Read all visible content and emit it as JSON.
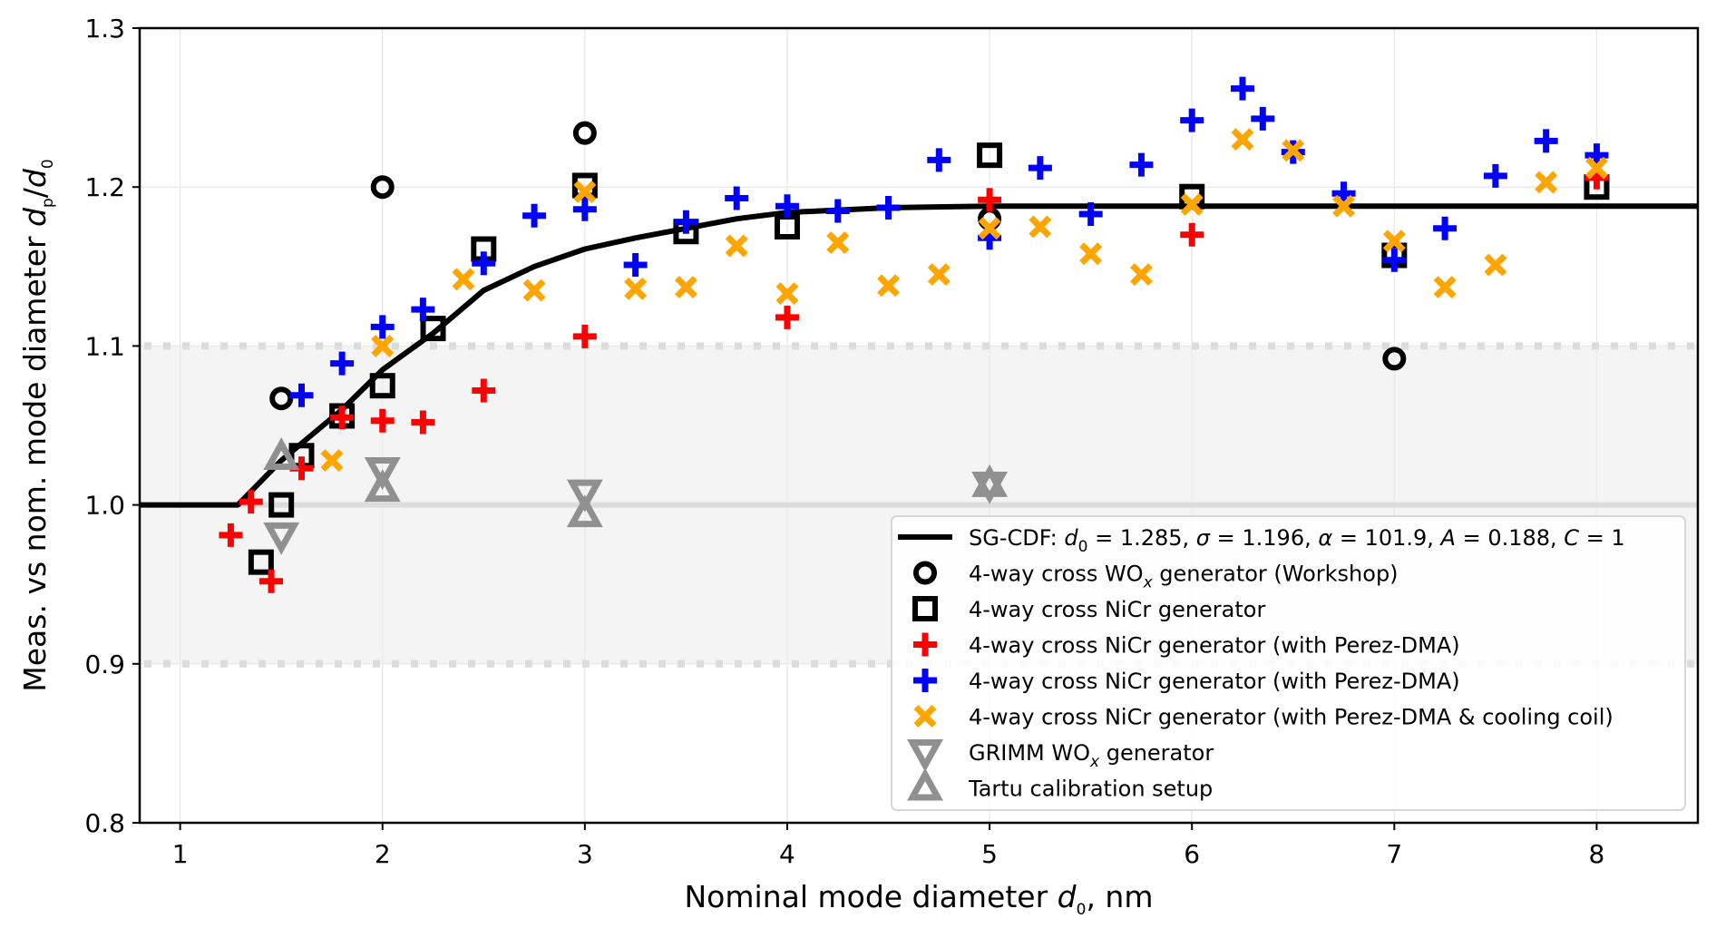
{
  "chart_data": {
    "type": "scatter",
    "title": "",
    "xlabel": "Nominal mode diameter d̂₀, nm",
    "xlabel_parts": {
      "main": "Nominal mode diameter ",
      "var": "d",
      "hat": "^",
      "sub": "0",
      "tail": ", nm"
    },
    "ylabel": "Meas. vs nom. mode diameter d̂p/d̂0",
    "ylabel_parts": {
      "main": "Meas. vs nom. mode diameter ",
      "var1": "d",
      "sub1": "p",
      "slash": "/",
      "var2": "d",
      "sub2": "0"
    },
    "xlim": [
      0.8,
      8.5
    ],
    "ylim": [
      0.8,
      1.3
    ],
    "xticks": [
      1,
      2,
      3,
      4,
      5,
      6,
      7,
      8
    ],
    "xtick_labels": [
      "1",
      "2",
      "3",
      "4",
      "5",
      "6",
      "7",
      "8"
    ],
    "yticks": [
      0.8,
      0.9,
      1.0,
      1.1,
      1.2,
      1.3
    ],
    "ytick_labels": [
      "0.8",
      "0.9",
      "1.0",
      "1.1",
      "1.2",
      "1.3"
    ],
    "grid": true,
    "reference_band": {
      "low": 0.9,
      "high": 1.1,
      "center": 1.0
    },
    "legend_position": "lower-right",
    "fit_curve": {
      "name": "SG-CDF",
      "label": "SG-CDF: d0 = 1.285, σ = 1.196, α = 101.9, A = 0.188, C = 1",
      "params": {
        "d0": 1.285,
        "sigma": 1.196,
        "alpha": 101.9,
        "A": 0.188,
        "C": 1
      },
      "color": "#000000",
      "x": [
        0.8,
        1.285,
        1.4,
        1.5,
        1.65,
        1.8,
        2.0,
        2.13,
        2.25,
        2.5,
        2.75,
        3.0,
        3.25,
        3.5,
        3.75,
        4.0,
        4.5,
        5.0,
        6.0,
        8.5
      ],
      "y": [
        1.0,
        1.0,
        1.015,
        1.028,
        1.044,
        1.06,
        1.085,
        1.097,
        1.108,
        1.135,
        1.15,
        1.161,
        1.168,
        1.174,
        1.18,
        1.184,
        1.187,
        1.188,
        1.188,
        1.188
      ]
    },
    "series": [
      {
        "name": "4-way cross WOx generator (Workshop)",
        "marker": "circle",
        "color": "#000000",
        "points": [
          [
            1.5,
            1.067
          ],
          [
            2.0,
            1.2
          ],
          [
            3.0,
            1.234
          ],
          [
            5.0,
            1.18
          ],
          [
            7.0,
            1.092
          ]
        ]
      },
      {
        "name": "4-way cross NiCr generator",
        "marker": "square",
        "color": "#000000",
        "points": [
          [
            1.4,
            0.964
          ],
          [
            1.5,
            1.0
          ],
          [
            1.6,
            1.031
          ],
          [
            1.8,
            1.056
          ],
          [
            2.0,
            1.075
          ],
          [
            2.25,
            1.111
          ],
          [
            2.5,
            1.161
          ],
          [
            3.0,
            1.201
          ],
          [
            3.5,
            1.172
          ],
          [
            4.0,
            1.175
          ],
          [
            5.0,
            1.22
          ],
          [
            6.0,
            1.194
          ],
          [
            7.0,
            1.157
          ],
          [
            8.0,
            1.2
          ]
        ]
      },
      {
        "name": "4-way cross NiCr generator (with Perez-DMA)",
        "marker": "plus",
        "color": "#ff0000",
        "points": [
          [
            1.25,
            0.981
          ],
          [
            1.35,
            1.002
          ],
          [
            1.45,
            0.952
          ],
          [
            1.6,
            1.023
          ],
          [
            1.8,
            1.055
          ],
          [
            2.0,
            1.053
          ],
          [
            2.2,
            1.052
          ],
          [
            2.5,
            1.072
          ],
          [
            3.0,
            1.106
          ],
          [
            4.0,
            1.118
          ],
          [
            5.0,
            1.192
          ],
          [
            6.0,
            1.17
          ],
          [
            8.0,
            1.206
          ]
        ]
      },
      {
        "name": "4-way cross NiCr generator (with Perez-DMA)",
        "marker": "plus",
        "color": "#0000ff",
        "points": [
          [
            1.6,
            1.069
          ],
          [
            1.8,
            1.089
          ],
          [
            2.0,
            1.112
          ],
          [
            2.2,
            1.123
          ],
          [
            2.5,
            1.152
          ],
          [
            2.75,
            1.182
          ],
          [
            3.0,
            1.186
          ],
          [
            3.25,
            1.151
          ],
          [
            3.5,
            1.178
          ],
          [
            3.75,
            1.193
          ],
          [
            4.0,
            1.188
          ],
          [
            4.25,
            1.185
          ],
          [
            4.5,
            1.187
          ],
          [
            4.75,
            1.217
          ],
          [
            5.0,
            1.168
          ],
          [
            5.25,
            1.212
          ],
          [
            5.5,
            1.183
          ],
          [
            5.75,
            1.214
          ],
          [
            6.0,
            1.242
          ],
          [
            6.25,
            1.262
          ],
          [
            6.35,
            1.243
          ],
          [
            6.5,
            1.222
          ],
          [
            6.75,
            1.196
          ],
          [
            7.0,
            1.154
          ],
          [
            7.25,
            1.174
          ],
          [
            7.5,
            1.207
          ],
          [
            7.75,
            1.229
          ],
          [
            8.0,
            1.22
          ]
        ]
      },
      {
        "name": "4-way cross NiCr generator (with Perez-DMA & cooling coil)",
        "marker": "x",
        "color": "#ffa500",
        "points": [
          [
            1.75,
            1.028
          ],
          [
            2.0,
            1.1
          ],
          [
            2.4,
            1.142
          ],
          [
            2.75,
            1.135
          ],
          [
            3.0,
            1.197
          ],
          [
            3.25,
            1.136
          ],
          [
            3.5,
            1.137
          ],
          [
            3.75,
            1.163
          ],
          [
            4.0,
            1.133
          ],
          [
            4.25,
            1.165
          ],
          [
            4.5,
            1.138
          ],
          [
            4.75,
            1.145
          ],
          [
            5.0,
            1.174
          ],
          [
            5.25,
            1.175
          ],
          [
            5.5,
            1.158
          ],
          [
            5.75,
            1.145
          ],
          [
            6.0,
            1.189
          ],
          [
            6.25,
            1.23
          ],
          [
            6.5,
            1.223
          ],
          [
            6.75,
            1.188
          ],
          [
            7.0,
            1.166
          ],
          [
            7.25,
            1.137
          ],
          [
            7.5,
            1.151
          ],
          [
            7.75,
            1.203
          ],
          [
            8.0,
            1.212
          ]
        ]
      },
      {
        "name": "GRIMM WOx generator",
        "marker": "triangle-down",
        "color": "#909090",
        "points": [
          [
            1.5,
            0.981
          ],
          [
            2.0,
            1.022
          ],
          [
            3.0,
            1.008
          ],
          [
            5.0,
            1.013
          ]
        ]
      },
      {
        "name": "Tartu calibration setup",
        "marker": "triangle-up",
        "color": "#909090",
        "points": [
          [
            1.5,
            1.03
          ],
          [
            2.0,
            1.01
          ],
          [
            3.0,
            0.994
          ],
          [
            5.0,
            1.013
          ]
        ]
      }
    ],
    "legend": [
      {
        "kind": "line",
        "color": "#000000",
        "parts": [
          [
            "SG-CDF: ",
            ""
          ],
          [
            "d",
            "i"
          ],
          [
            "0",
            "s"
          ],
          [
            " = 1.285, ",
            ""
          ],
          [
            "σ",
            "i"
          ],
          [
            " = 1.196, ",
            ""
          ],
          [
            "α",
            "i"
          ],
          [
            " = 101.9, ",
            ""
          ],
          [
            "A",
            "i"
          ],
          [
            " = 0.188, ",
            ""
          ],
          [
            "C",
            "i"
          ],
          [
            " = 1",
            ""
          ]
        ]
      },
      {
        "kind": "circle",
        "color": "#000000",
        "parts": [
          [
            "4-way cross WO",
            ""
          ],
          [
            "x",
            "is"
          ],
          [
            " generator (Workshop)",
            ""
          ]
        ]
      },
      {
        "kind": "square",
        "color": "#000000",
        "parts": [
          [
            "4-way cross NiCr generator",
            ""
          ]
        ]
      },
      {
        "kind": "plus",
        "color": "#ff0000",
        "parts": [
          [
            "4-way cross NiCr generator (with Perez-DMA)",
            ""
          ]
        ]
      },
      {
        "kind": "plus",
        "color": "#0000ff",
        "parts": [
          [
            "4-way cross NiCr generator (with Perez-DMA)",
            ""
          ]
        ]
      },
      {
        "kind": "x",
        "color": "#ffa500",
        "parts": [
          [
            "4-way cross NiCr generator (with Perez-DMA & cooling coil)",
            ""
          ]
        ]
      },
      {
        "kind": "triangle-down",
        "color": "#909090",
        "parts": [
          [
            "GRIMM WO",
            ""
          ],
          [
            "x",
            "is"
          ],
          [
            " generator",
            ""
          ]
        ]
      },
      {
        "kind": "triangle-up",
        "color": "#909090",
        "parts": [
          [
            "Tartu calibration setup",
            ""
          ]
        ]
      }
    ]
  }
}
